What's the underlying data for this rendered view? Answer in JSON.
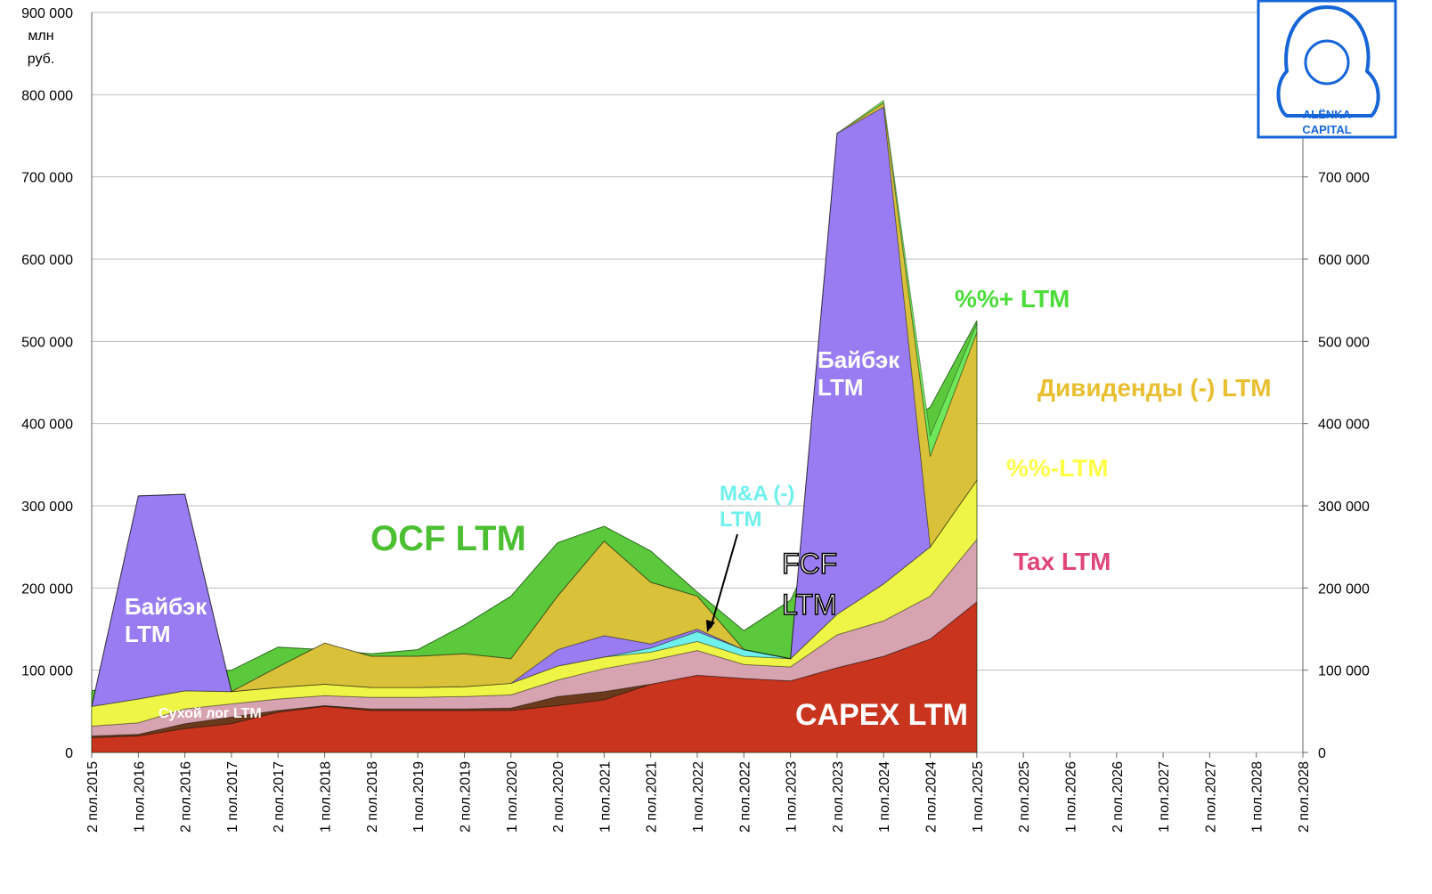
{
  "logo": {
    "line1": "ALËNKA",
    "line2": "CAPITAL"
  },
  "chart_data": {
    "type": "stacked-area",
    "unit_label": "млн руб.",
    "annotations": [
      "FCF LTM"
    ],
    "categories": [
      "2 пол.2015",
      "1 пол.2016",
      "2 пол.2016",
      "1 пол.2017",
      "2 пол.2017",
      "1 пол.2018",
      "2 пол.2018",
      "1 пол.2019",
      "2 пол.2019",
      "1 пол.2020",
      "2 пол.2020",
      "1 пол.2021",
      "2 пол.2021",
      "1 пол.2022",
      "2 пол.2022",
      "1 пол.2023",
      "2 пол.2023",
      "1 пол.2024",
      "2 пол.2024",
      "1 пол.2025",
      "2 пол.2025",
      "1 пол.2026",
      "2 пол.2026",
      "1 пол.2027",
      "2 пол.2027",
      "1 пол.2028",
      "2 пол.2028"
    ],
    "overlay": {
      "name": "OCF LTM",
      "color": "#5cc93d",
      "values": [
        75000,
        85000,
        95000,
        100000,
        128000,
        125000,
        120000,
        125000,
        155000,
        190000,
        255000,
        275000,
        245000,
        195000,
        148000,
        185000,
        300000,
        380000,
        420000,
        525000,
        null,
        null,
        null,
        null,
        null,
        null,
        null
      ]
    },
    "series": [
      {
        "name": "CAPEX LTM",
        "color": "#c9341f",
        "values": [
          18000,
          20000,
          29000,
          35000,
          49000,
          56000,
          51000,
          51000,
          51000,
          51000,
          57000,
          64000,
          83000,
          94000,
          90000,
          87000,
          103000,
          117000,
          138000,
          183000,
          null,
          null,
          null,
          null,
          null,
          null,
          null
        ]
      },
      {
        "name": "Сухой лог LTM",
        "color": "#6b3a1c",
        "values": [
          2000,
          2000,
          6000,
          8000,
          2000,
          1000,
          2000,
          2000,
          2000,
          3000,
          11000,
          10000,
          0,
          0,
          0,
          0,
          0,
          0,
          0,
          0,
          null,
          null,
          null,
          null,
          null,
          null,
          null
        ]
      },
      {
        "name": "Tax LTM",
        "color": "#d8a3b1",
        "values": [
          12000,
          14000,
          18000,
          16000,
          14000,
          12000,
          14000,
          14000,
          15000,
          16000,
          20000,
          28000,
          29000,
          30000,
          17000,
          17000,
          40000,
          43000,
          52000,
          76000,
          null,
          null,
          null,
          null,
          null,
          null,
          null
        ]
      },
      {
        "name": "%%-LTM",
        "color": "#eef546",
        "values": [
          24000,
          29000,
          22000,
          15000,
          14000,
          14000,
          12000,
          12000,
          12000,
          14000,
          17000,
          14000,
          10000,
          11000,
          10000,
          10000,
          25000,
          45000,
          60000,
          72000,
          null,
          null,
          null,
          null,
          null,
          null,
          null
        ]
      },
      {
        "name": "M&A (-) LTM",
        "color": "#6ff0ec",
        "values": [
          0,
          0,
          0,
          0,
          0,
          0,
          0,
          0,
          0,
          0,
          0,
          0,
          5000,
          12000,
          8000,
          0,
          0,
          0,
          0,
          0,
          null,
          null,
          null,
          null,
          null,
          null,
          null
        ]
      },
      {
        "name": "Байбэк LTM",
        "color": "#9a7cf2",
        "values": [
          0,
          247000,
          239000,
          0,
          0,
          0,
          0,
          0,
          0,
          0,
          20000,
          26000,
          5000,
          3000,
          0,
          0,
          585000,
          580000,
          0,
          0,
          null,
          null,
          null,
          null,
          null,
          null,
          null
        ]
      },
      {
        "name": "Дивиденды  (-) LTM",
        "color": "#d9c13a",
        "values": [
          0,
          0,
          0,
          0,
          25000,
          50000,
          38000,
          38000,
          40000,
          30000,
          65000,
          115000,
          75000,
          40000,
          0,
          0,
          0,
          5000,
          110000,
          180000,
          null,
          null,
          null,
          null,
          null,
          null,
          null
        ]
      },
      {
        "name": "%%+  LTM",
        "color": "#6ee85a",
        "values": [
          0,
          0,
          0,
          0,
          0,
          0,
          0,
          0,
          0,
          0,
          0,
          0,
          0,
          0,
          0,
          0,
          0,
          3000,
          25000,
          10000,
          null,
          null,
          null,
          null,
          null,
          null,
          null
        ]
      }
    ],
    "ylim": [
      0,
      900000
    ],
    "yticks": [
      {
        "value": 0,
        "label": "0"
      },
      {
        "value": 100000,
        "label": "100 000"
      },
      {
        "value": 200000,
        "label": "200 000"
      },
      {
        "value": 300000,
        "label": "300 000"
      },
      {
        "value": 400000,
        "label": "400 000"
      },
      {
        "value": 500000,
        "label": "500 000"
      },
      {
        "value": 600000,
        "label": "600 000"
      },
      {
        "value": 700000,
        "label": "700 000"
      },
      {
        "value": 800000,
        "label": "800 000"
      },
      {
        "value": 900000,
        "label": "900 000"
      }
    ],
    "y2lim": [
      0,
      900000
    ],
    "y2ticks": [
      {
        "value": 0,
        "label": "0"
      },
      {
        "value": 100000,
        "label": "100 000"
      },
      {
        "value": 200000,
        "label": "200 000"
      },
      {
        "value": 300000,
        "label": "300 000"
      },
      {
        "value": 400000,
        "label": "400 000"
      },
      {
        "value": 500000,
        "label": "500 000"
      },
      {
        "value": 600000,
        "label": "600 000"
      },
      {
        "value": 700000,
        "label": "700 000"
      }
    ],
    "grid": true
  }
}
